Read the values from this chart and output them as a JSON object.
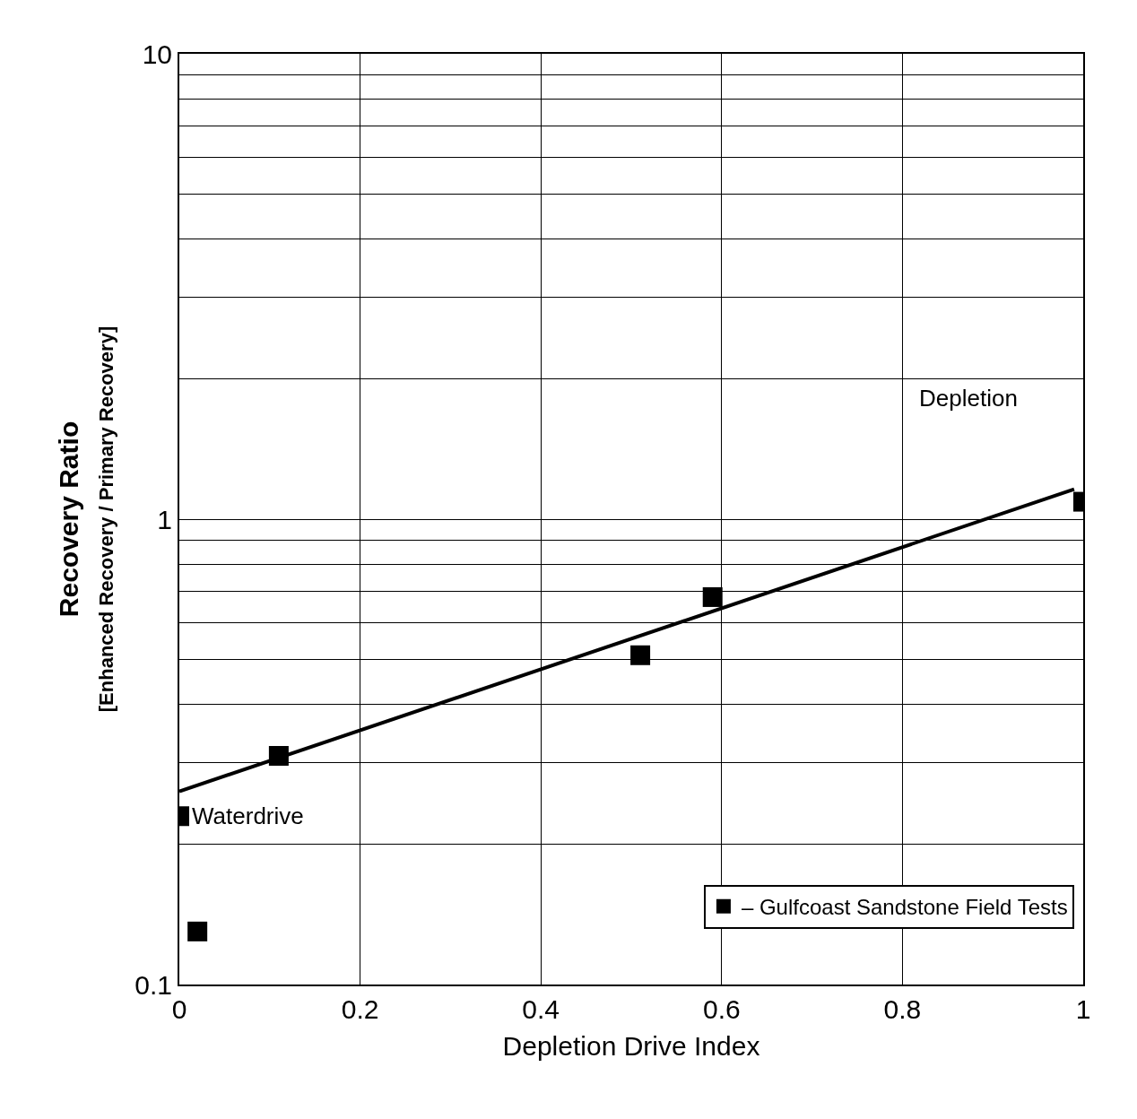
{
  "chart_data": {
    "type": "scatter",
    "xlabel": "Depletion Drive Index",
    "ylabel": "Recovery Ratio\n[Enhanced Recovery / Primary Recovery]",
    "series": [
      {
        "name": "– Gulfcoast Sandstone Field Tests",
        "color": "#000000",
        "marker": "square",
        "x": [
          0,
          0.02,
          0.11,
          0.51,
          0.59,
          1.0
        ],
        "values": [
          0.23,
          0.13,
          0.31,
          0.51,
          0.68,
          1.09
        ]
      },
      {
        "type": "line",
        "color": "#000000",
        "marker": "none",
        "line_style": "solid",
        "x": [
          0,
          0.99
        ],
        "values": [
          0.26,
          1.16
        ]
      }
    ],
    "annotations": [
      {
        "text": "Waterdrive",
        "x": 0,
        "y": 0.23
      },
      "Depletion"
    ],
    "log": "y",
    "xlim": [
      0,
      1
    ],
    "ylim": [
      0.1,
      10
    ],
    "xticks": [
      0,
      0.2,
      0.4,
      0.6,
      0.8,
      1
    ],
    "yticks": [
      0.1,
      {
        "value": 0.2,
        "label": null
      },
      {
        "value": 0.3,
        "label": null
      },
      {
        "value": 0.4,
        "label": null
      },
      {
        "value": 0.5,
        "label": null
      },
      {
        "value": 0.6,
        "label": null
      },
      {
        "value": 0.7,
        "label": null
      },
      {
        "value": 0.8,
        "label": null
      },
      {
        "value": 0.9,
        "label": null
      },
      1,
      {
        "value": 2,
        "label": null
      },
      {
        "value": 3,
        "label": null
      },
      {
        "value": 4,
        "label": null
      },
      {
        "value": 5,
        "label": null
      },
      {
        "value": 6,
        "label": null
      },
      {
        "value": 7,
        "label": null
      },
      {
        "value": 8,
        "label": null
      },
      {
        "value": 9,
        "label": null
      },
      10
    ],
    "grid": true,
    "legend": "bottom right"
  }
}
